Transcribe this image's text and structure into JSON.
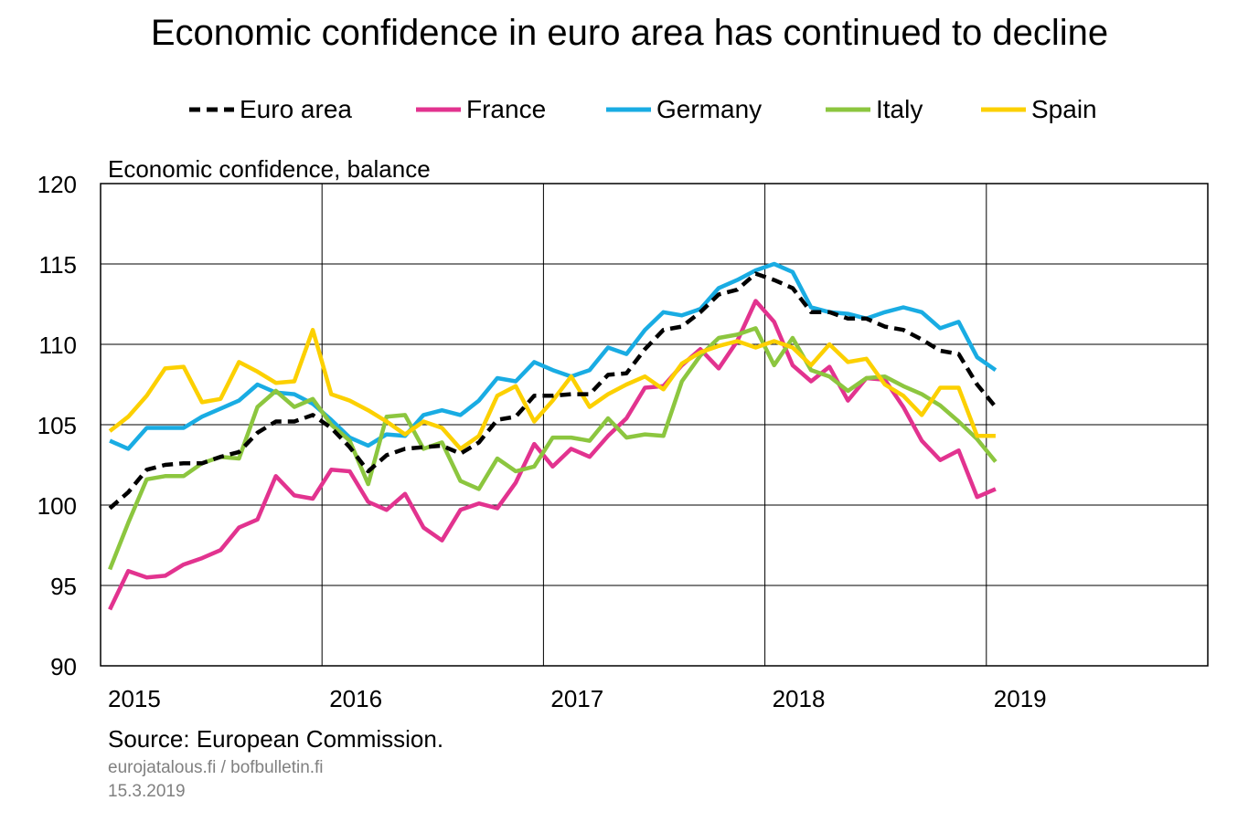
{
  "title": "Economic confidence in euro area has continued to decline",
  "source": "Source: European Commission.",
  "site": "eurojatalous.fi / bofbulletin.fi",
  "date": "15.3.2019",
  "chart_data": {
    "type": "line",
    "ylabel": "Economic confidence, balance",
    "ylim": [
      90,
      120
    ],
    "yticks": [
      "120",
      "115",
      "110",
      "105",
      "100",
      "95",
      "90"
    ],
    "xlim": [
      "2015-01",
      "2020-01"
    ],
    "xticks": [
      "2015",
      "2016",
      "2017",
      "2018",
      "2019"
    ],
    "grid": true,
    "legend_position": "top",
    "x_start": "2015-01",
    "x_step": "month",
    "series": [
      {
        "name": "Euro area",
        "color": "#000000",
        "dash": true,
        "values": [
          99.8,
          100.8,
          102.2,
          102.5,
          102.6,
          102.6,
          103.0,
          103.3,
          104.5,
          105.2,
          105.2,
          105.6,
          104.8,
          103.6,
          102.1,
          103.1,
          103.5,
          103.6,
          103.7,
          103.2,
          103.9,
          105.3,
          105.5,
          106.8,
          106.8,
          106.9,
          106.9,
          108.1,
          108.2,
          109.7,
          110.9,
          111.1,
          112.0,
          113.1,
          113.4,
          114.4,
          114.0,
          113.5,
          112.0,
          112.0,
          111.6,
          111.6,
          111.1,
          110.9,
          110.3,
          109.6,
          109.4,
          107.5,
          106.1
        ]
      },
      {
        "name": "France",
        "color": "#e2338f",
        "values": [
          93.5,
          95.9,
          95.5,
          95.6,
          96.3,
          96.7,
          97.2,
          98.6,
          99.1,
          101.8,
          100.6,
          100.4,
          102.2,
          102.1,
          100.2,
          99.7,
          100.7,
          98.6,
          97.8,
          99.7,
          100.1,
          99.8,
          101.4,
          103.8,
          102.4,
          103.5,
          103.0,
          104.3,
          105.4,
          107.3,
          107.4,
          108.7,
          109.7,
          108.5,
          110.2,
          112.7,
          111.4,
          108.7,
          107.7,
          108.6,
          106.5,
          107.9,
          107.8,
          106.1,
          104.0,
          102.8,
          103.4,
          100.5,
          101.0
        ]
      },
      {
        "name": "Germany",
        "color": "#19ace3",
        "values": [
          104.0,
          103.5,
          104.8,
          104.8,
          104.8,
          105.5,
          106.0,
          106.5,
          107.5,
          107.0,
          106.9,
          106.3,
          105.3,
          104.2,
          103.7,
          104.4,
          104.3,
          105.6,
          105.9,
          105.6,
          106.5,
          107.9,
          107.7,
          108.9,
          108.4,
          108.0,
          108.4,
          109.8,
          109.4,
          110.9,
          112.0,
          111.8,
          112.2,
          113.5,
          114.0,
          114.6,
          115.0,
          114.5,
          112.3,
          112.0,
          111.9,
          111.6,
          112.0,
          112.3,
          112.0,
          111.0,
          111.4,
          109.2,
          108.4
        ]
      },
      {
        "name": "Italy",
        "color": "#8cc63f",
        "values": [
          96.0,
          98.9,
          101.6,
          101.8,
          101.8,
          102.6,
          103.0,
          102.9,
          106.1,
          107.1,
          106.1,
          106.6,
          105.0,
          104.0,
          101.3,
          105.5,
          105.6,
          103.5,
          103.9,
          101.5,
          101.0,
          102.9,
          102.1,
          102.4,
          104.2,
          104.2,
          104.0,
          105.4,
          104.2,
          104.4,
          104.3,
          107.7,
          109.3,
          110.4,
          110.6,
          111.0,
          108.7,
          110.4,
          108.4,
          108.0,
          107.1,
          107.9,
          108.0,
          107.4,
          106.9,
          106.2,
          105.2,
          104.1,
          102.7
        ]
      },
      {
        "name": "Spain",
        "color": "#fcd000",
        "values": [
          104.6,
          105.5,
          106.8,
          108.5,
          108.6,
          106.4,
          106.6,
          108.9,
          108.3,
          107.6,
          107.7,
          110.9,
          106.9,
          106.5,
          105.9,
          105.2,
          104.4,
          105.2,
          104.8,
          103.5,
          104.3,
          106.8,
          107.4,
          105.2,
          106.5,
          108.0,
          106.1,
          106.9,
          107.5,
          108.0,
          107.2,
          108.8,
          109.5,
          109.9,
          110.2,
          109.8,
          110.2,
          109.8,
          108.7,
          110.0,
          108.9,
          109.1,
          107.5,
          106.8,
          105.6,
          107.3,
          107.3,
          104.3,
          104.3
        ]
      }
    ]
  }
}
